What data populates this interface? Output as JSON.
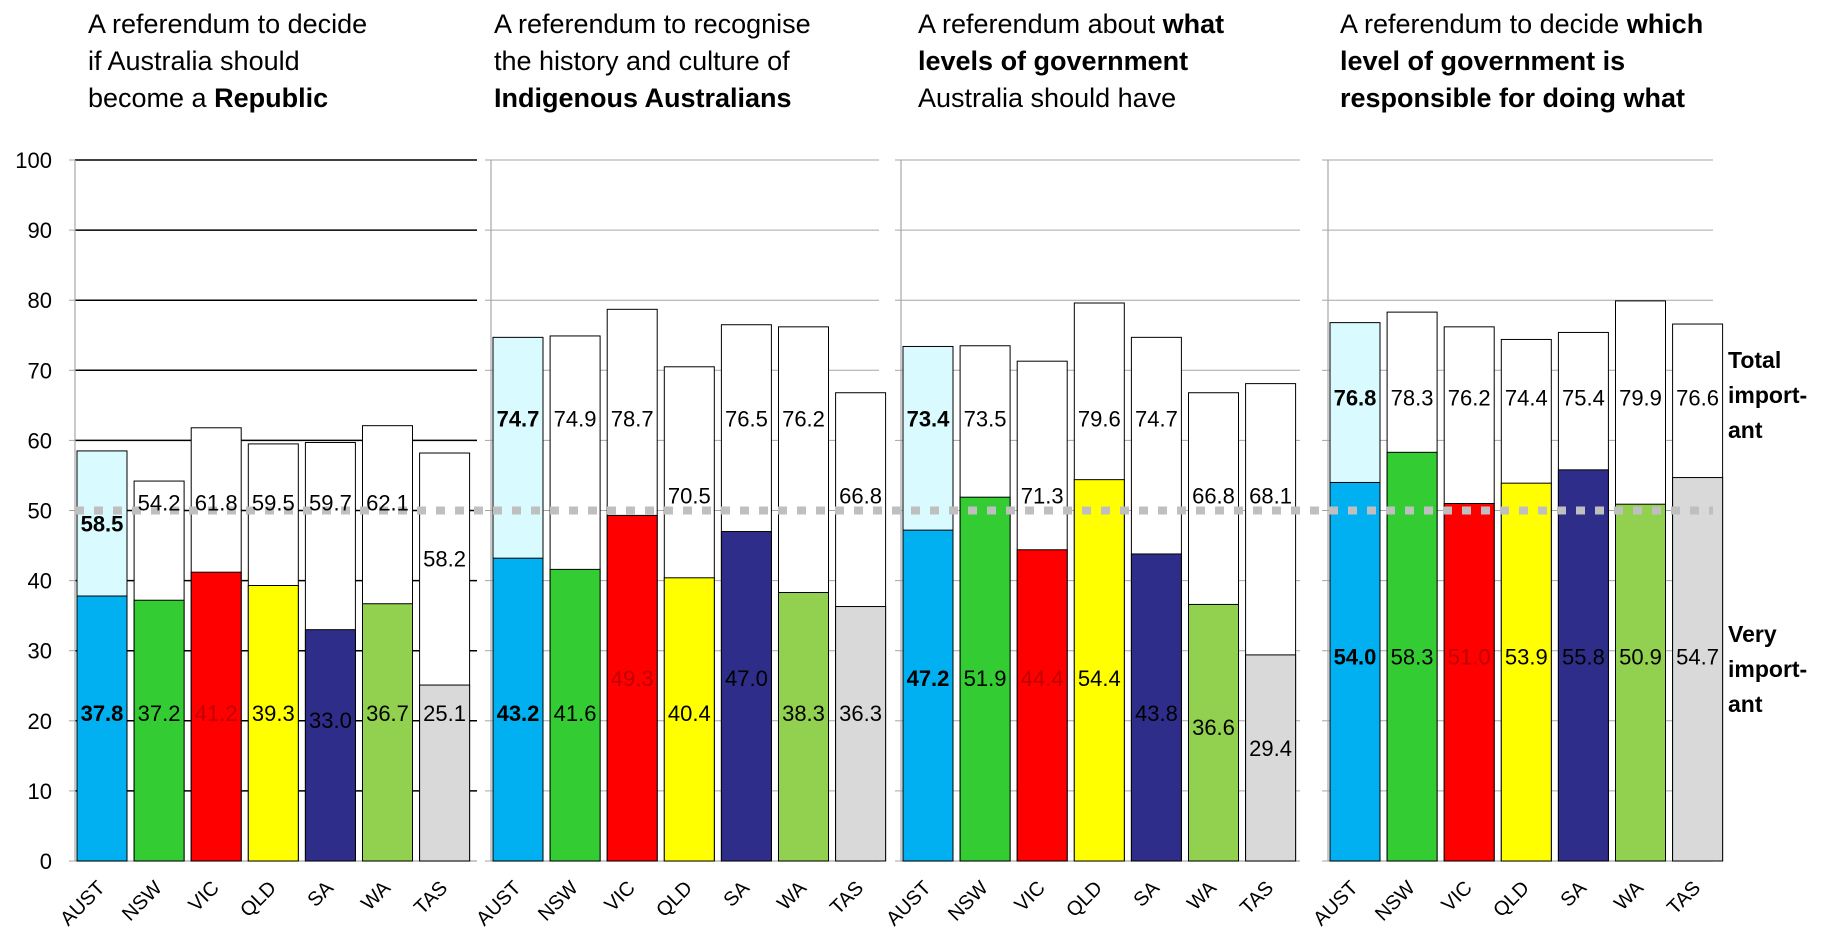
{
  "panel_titles": [
    {
      "line1": "A referendum to decide",
      "line2": "if Australia should",
      "line3_pre": "become a ",
      "line3_bold": "Republic"
    },
    {
      "line1": "A referendum to recognise",
      "line2": "the history and culture of",
      "line3_pre": "",
      "line3_bold": "Indigenous Australians"
    },
    {
      "line1_pre": "A referendum about ",
      "line1_bold": "what",
      "line2_bold": "levels of government",
      "line3_pre": "Australia should have"
    },
    {
      "line1_pre": "A referendum to decide ",
      "line1_bold": "which",
      "line2_bold": "level of government is",
      "line3_bold": "responsible for doing what"
    }
  ],
  "legend": {
    "total_line1": "Total",
    "total_line2": "import-",
    "total_line3": "ant",
    "very_line1": "Very",
    "very_line2": "import-",
    "very_line3": "ant"
  },
  "colors": {
    "AUST": "#00B0F0",
    "NSW": "#33CC33",
    "VIC": "#FF0000",
    "QLD": "#FFFF00",
    "SA": "#2E2E8A",
    "WA": "#92D050",
    "TAS": "#D9D9D9",
    "aust_total_fill": "#D9FBFF",
    "reference_line": "#BFBFBF"
  },
  "chart_data": {
    "type": "bar",
    "categories": [
      "AUST",
      "NSW",
      "VIC",
      "QLD",
      "SA",
      "WA",
      "TAS"
    ],
    "ylim": [
      0,
      100
    ],
    "yticks": [
      0,
      10,
      20,
      30,
      40,
      50,
      60,
      70,
      80,
      90,
      100
    ],
    "reference_line_y": 50,
    "panels": [
      {
        "very_important": [
          37.8,
          37.2,
          41.2,
          39.3,
          33.0,
          36.7,
          25.1
        ],
        "total_important": [
          58.5,
          54.2,
          61.8,
          59.5,
          59.7,
          62.1,
          58.2
        ]
      },
      {
        "very_important": [
          43.2,
          41.6,
          49.3,
          40.4,
          47.0,
          38.3,
          36.3
        ],
        "total_important": [
          74.7,
          74.9,
          78.7,
          70.5,
          76.5,
          76.2,
          66.8
        ]
      },
      {
        "very_important": [
          47.2,
          51.9,
          44.4,
          54.4,
          43.8,
          36.6,
          29.4
        ],
        "total_important": [
          73.4,
          73.5,
          71.3,
          79.6,
          74.7,
          66.8,
          68.1
        ]
      },
      {
        "very_important": [
          54.0,
          58.3,
          51.0,
          53.9,
          55.8,
          50.9,
          54.7
        ],
        "total_important": [
          76.8,
          78.3,
          76.2,
          74.4,
          75.4,
          79.9,
          76.6
        ]
      }
    ]
  }
}
